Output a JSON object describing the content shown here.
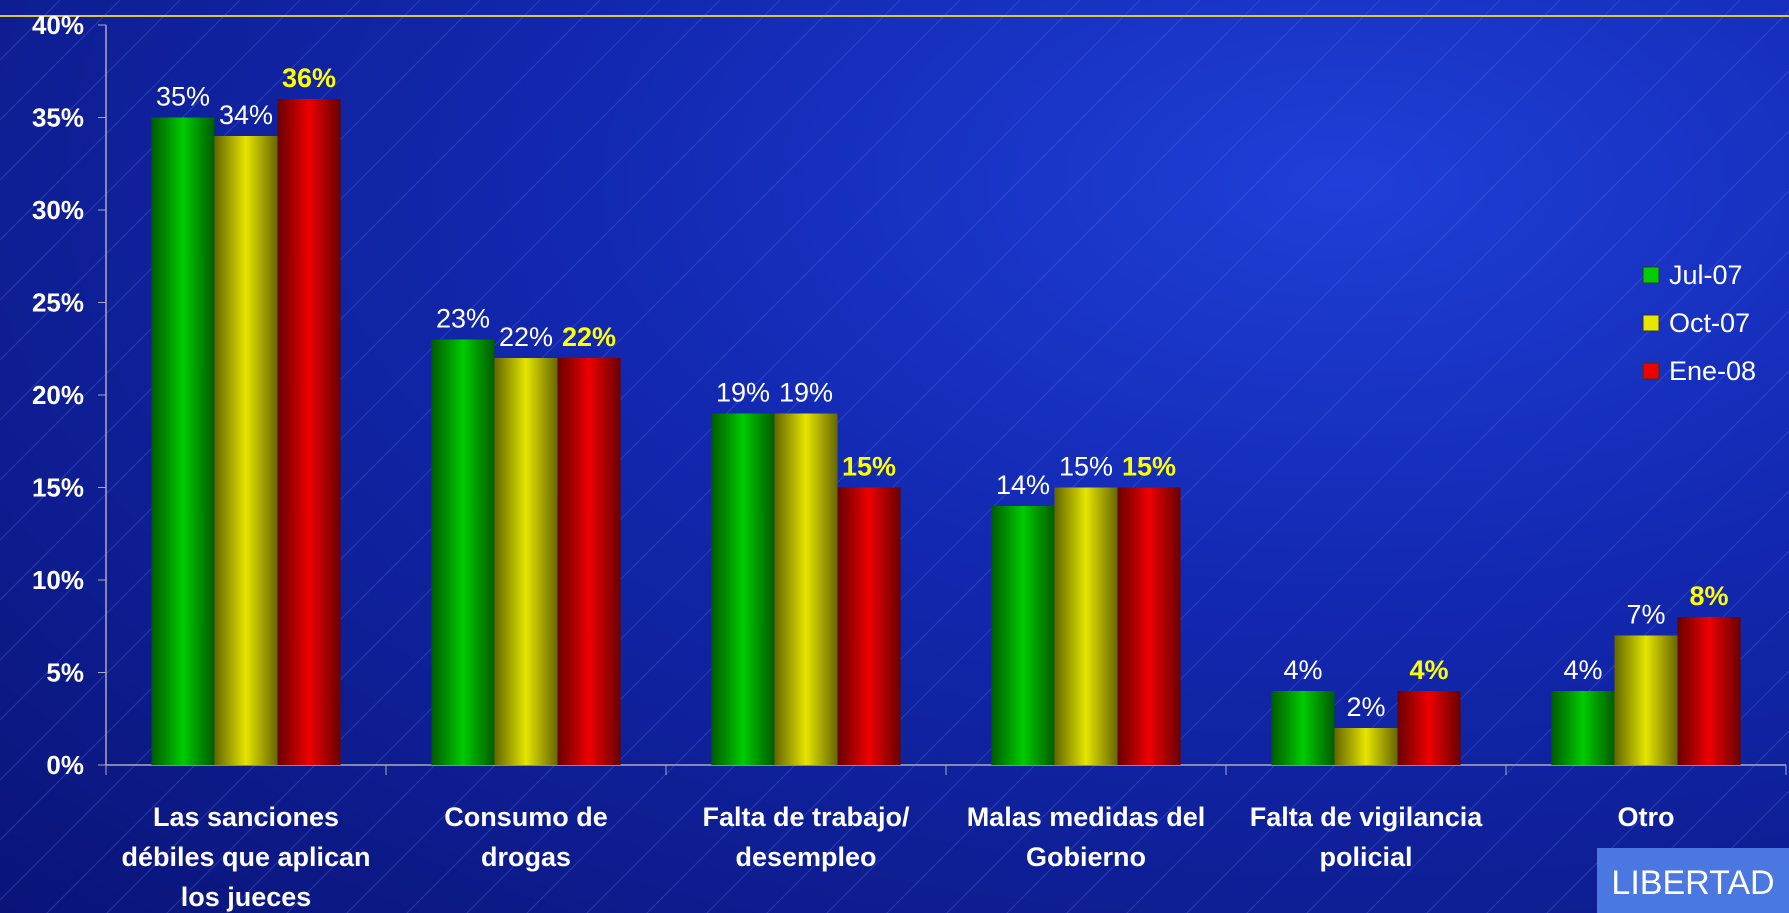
{
  "chart_data": {
    "type": "bar",
    "categories": [
      "Las sanciones débiles que aplican los jueces",
      "Consumo de drogas",
      "Falta de trabajo/ desempleo",
      "Malas medidas del Gobierno",
      "Falta de vigilancia policial",
      "Otro"
    ],
    "series": [
      {
        "name": "Jul-07",
        "color": "#00cc00",
        "values": [
          35,
          23,
          19,
          14,
          4,
          4
        ],
        "value_labels": [
          "35%",
          "23%",
          "19%",
          "14%",
          "4%",
          "4%"
        ]
      },
      {
        "name": "Oct-07",
        "color": "#e6e600",
        "values": [
          34,
          22,
          19,
          15,
          2,
          7
        ],
        "value_labels": [
          "34%",
          "22%",
          "19%",
          "15%",
          "2%",
          "7%"
        ]
      },
      {
        "name": "Ene-08",
        "color": "#ee0000",
        "values": [
          36,
          22,
          15,
          15,
          4,
          8
        ],
        "value_labels": [
          "36%",
          "22%",
          "15%",
          "15%",
          "4%",
          "8%"
        ]
      }
    ],
    "ylim": [
      0,
      40
    ],
    "yticks": [
      {
        "value": 0,
        "label": "0%"
      },
      {
        "value": 5,
        "label": "5%"
      },
      {
        "value": 10,
        "label": "10%"
      },
      {
        "value": 15,
        "label": "15%"
      },
      {
        "value": 20,
        "label": "20%"
      },
      {
        "value": 25,
        "label": "25%"
      },
      {
        "value": 30,
        "label": "30%"
      },
      {
        "value": 35,
        "label": "35%"
      },
      {
        "value": 40,
        "label": "40%"
      }
    ],
    "legend": "right",
    "logo": "LIBERTAD"
  }
}
